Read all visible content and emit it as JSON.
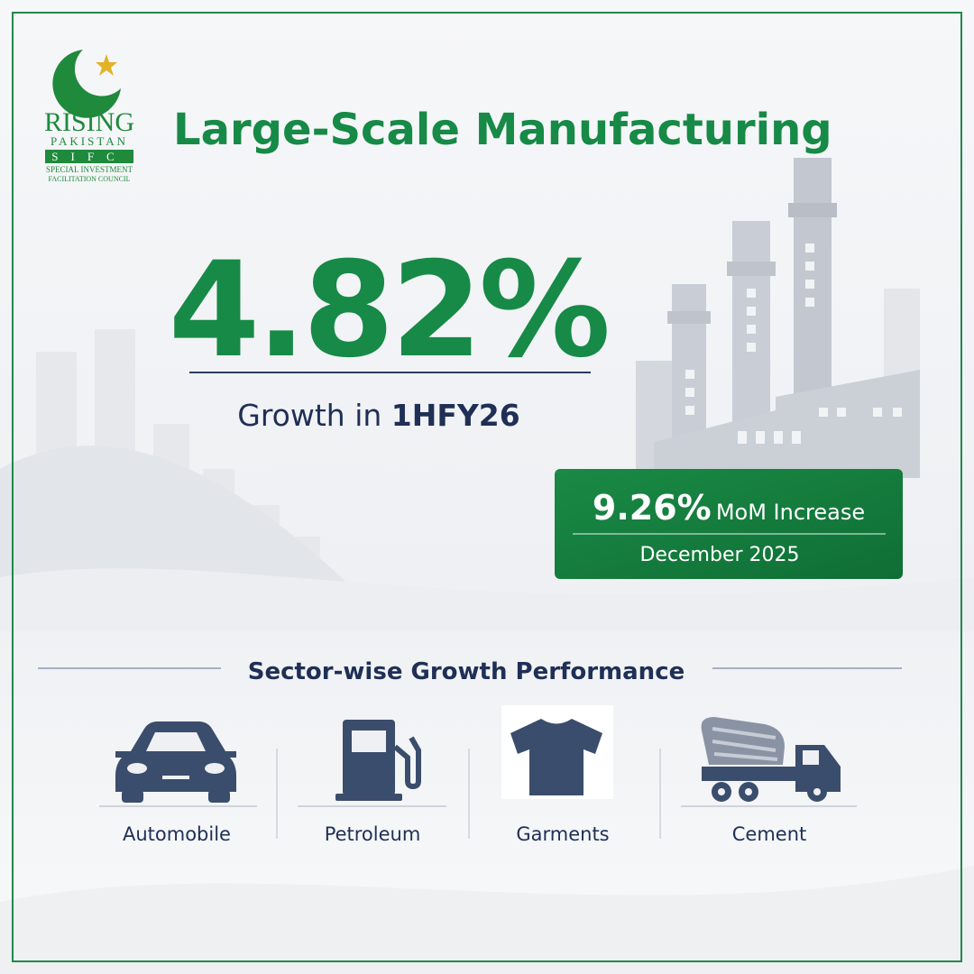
{
  "logo": {
    "line1": "RISING",
    "line2": "PAKISTAN",
    "badge": "SIFC",
    "line3": "SPECIAL INVESTMENT",
    "line4": "FACILITATION COUNCIL"
  },
  "title": "Large-Scale Manufacturing",
  "headline": {
    "value": "4.82%",
    "caption": "Growth in",
    "period": "1HFY26"
  },
  "highlight": {
    "value": "9.26%",
    "label": "MoM Increase",
    "date": "December 2025"
  },
  "section_title": "Sector-wise Growth Performance",
  "sectors": [
    "Automobile",
    "Petroleum",
    "Garments",
    "Cement"
  ]
}
